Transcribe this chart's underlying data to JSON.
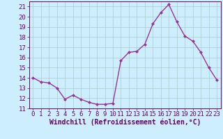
{
  "x": [
    0,
    1,
    2,
    3,
    4,
    5,
    6,
    7,
    8,
    9,
    10,
    11,
    12,
    13,
    14,
    15,
    16,
    17,
    18,
    19,
    20,
    21,
    22,
    23
  ],
  "y": [
    14.0,
    13.6,
    13.5,
    13.0,
    11.9,
    12.3,
    11.9,
    11.6,
    11.4,
    11.4,
    11.5,
    15.7,
    16.5,
    16.6,
    17.3,
    19.3,
    20.4,
    21.2,
    19.5,
    18.1,
    17.6,
    16.5,
    15.0,
    13.8
  ],
  "line_color": "#993399",
  "marker": "D",
  "marker_size": 2.0,
  "background_color": "#cceeff",
  "grid_color": "#aacccc",
  "xlabel": "Windchill (Refroidissement éolien,°C)",
  "ylabel": "",
  "xlim": [
    -0.5,
    23.5
  ],
  "ylim": [
    11,
    21.5
  ],
  "yticks": [
    11,
    12,
    13,
    14,
    15,
    16,
    17,
    18,
    19,
    20,
    21
  ],
  "xticks": [
    0,
    1,
    2,
    3,
    4,
    5,
    6,
    7,
    8,
    9,
    10,
    11,
    12,
    13,
    14,
    15,
    16,
    17,
    18,
    19,
    20,
    21,
    22,
    23
  ],
  "tick_label_size": 6.5,
  "xlabel_size": 7.0,
  "line_width": 1.0,
  "axis_color": "#660066",
  "tick_color": "#660066"
}
